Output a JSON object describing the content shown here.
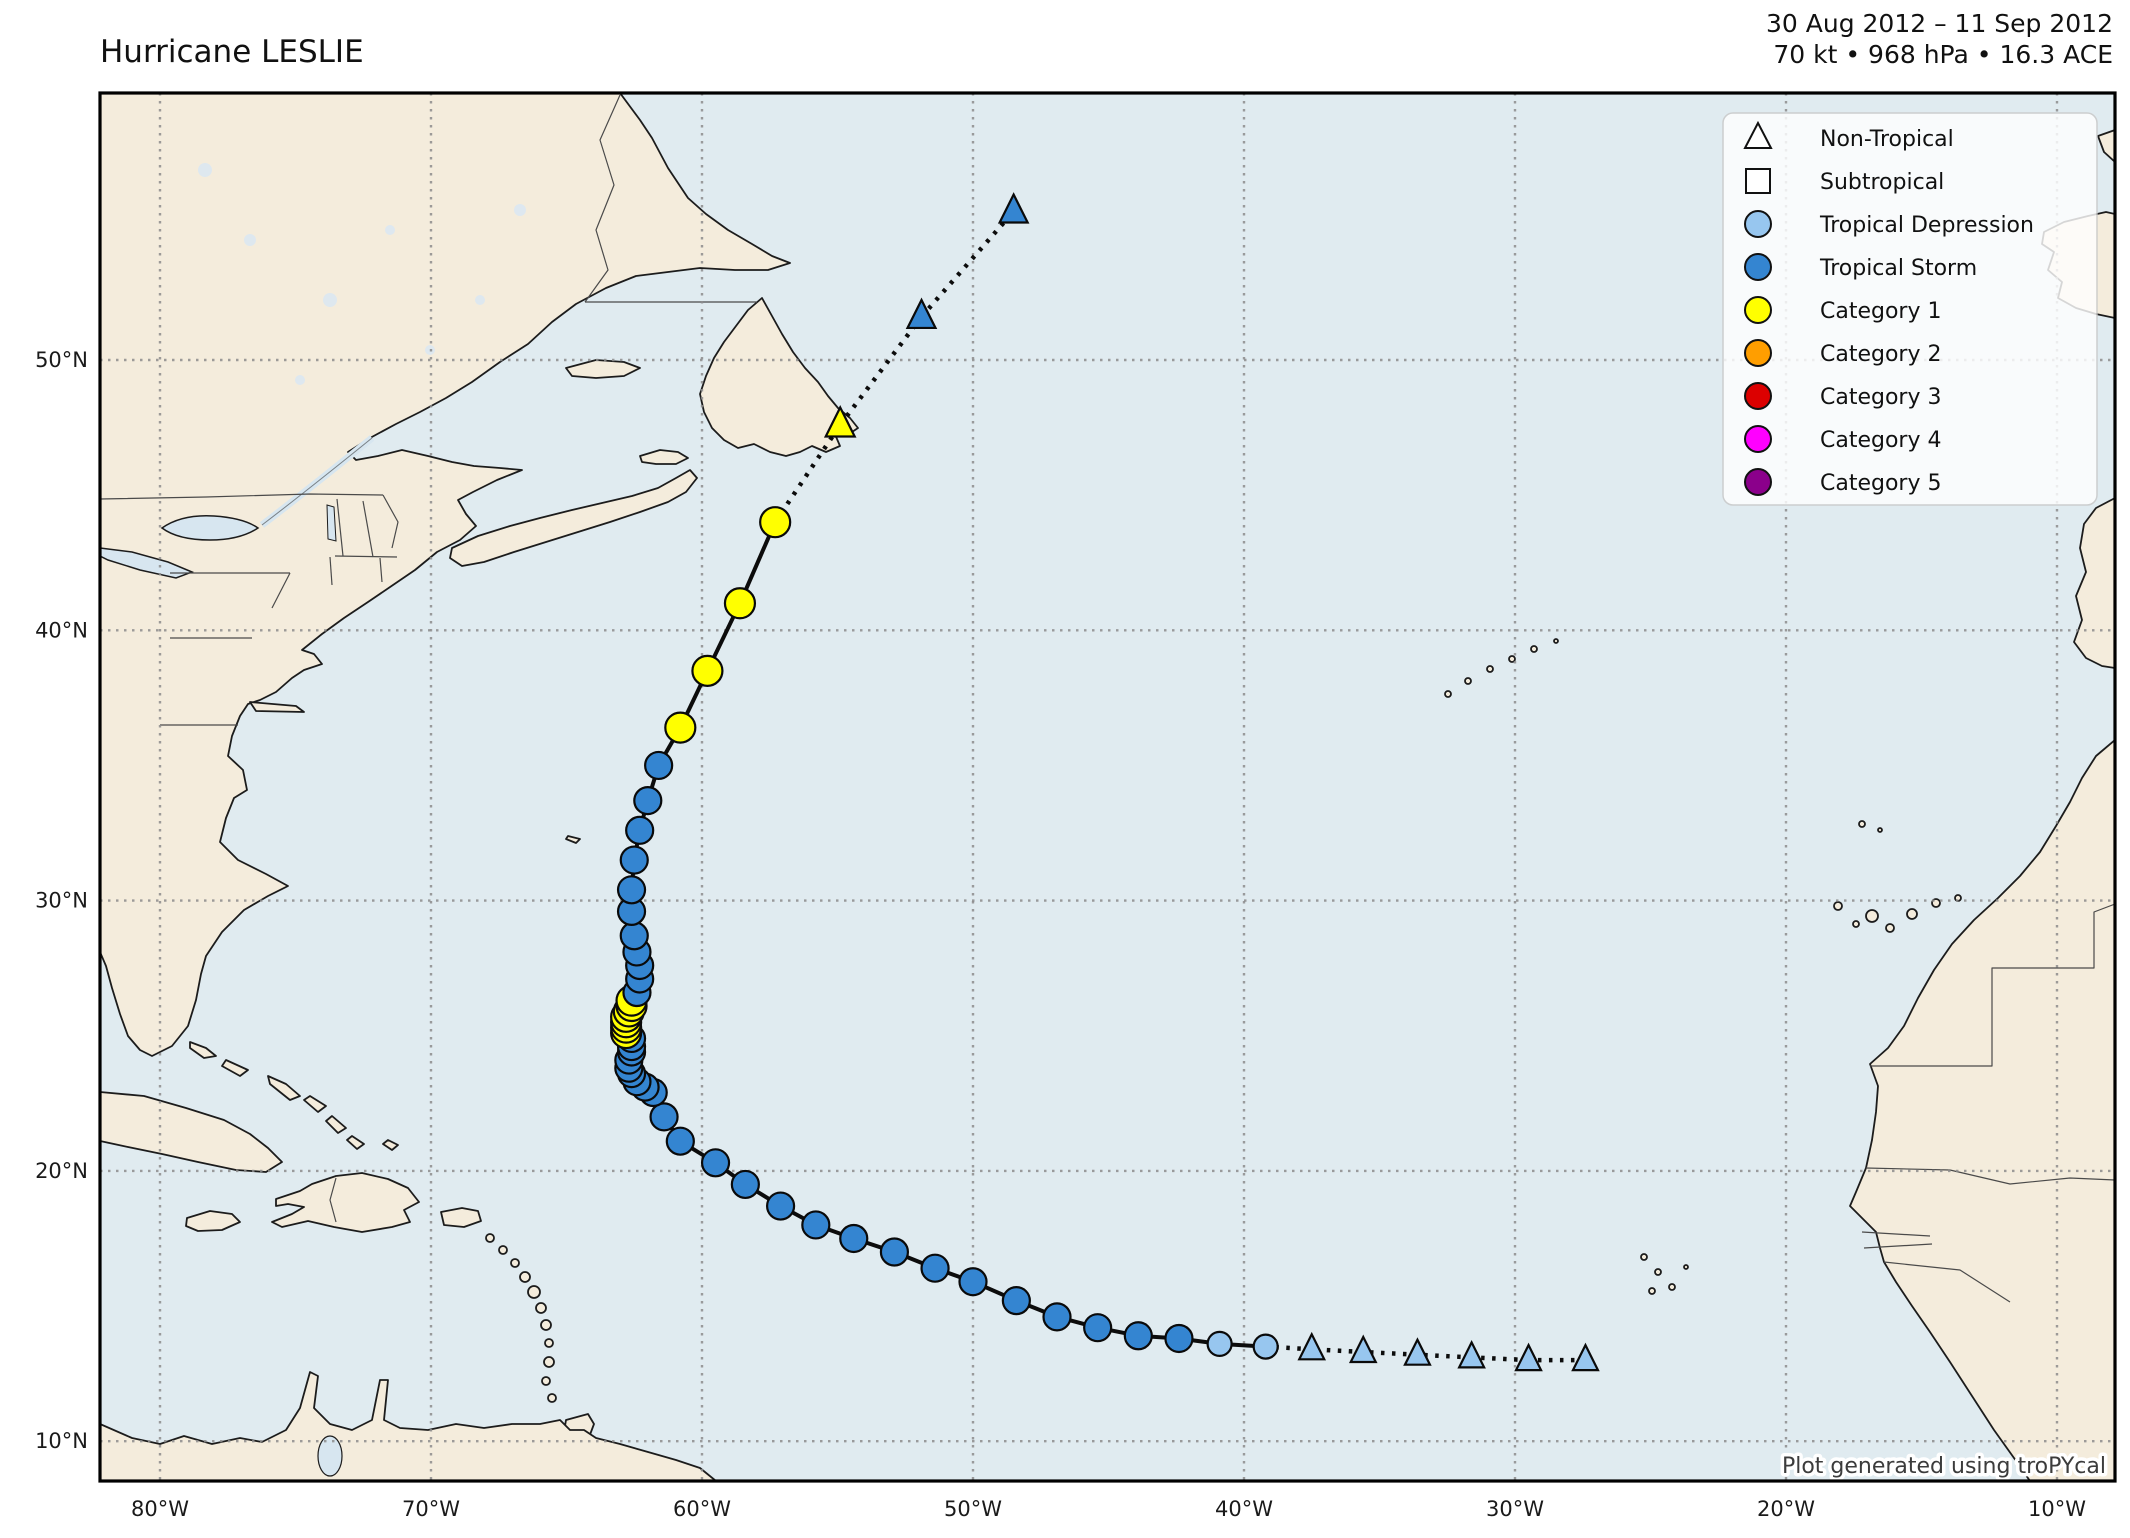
{
  "header": {
    "title": "Hurricane LESLIE",
    "date_range": "30 Aug 2012 – 11 Sep 2012",
    "stats": "70 kt • 968 hPa • 16.3 ACE"
  },
  "legend": {
    "items": [
      {
        "label": "Non-Tropical",
        "marker": "triangle",
        "fill": "#ffffff"
      },
      {
        "label": "Subtropical",
        "marker": "square",
        "fill": "#ffffff"
      },
      {
        "label": "Tropical Depression",
        "marker": "circle",
        "fill": "#97c6ef"
      },
      {
        "label": "Tropical Storm",
        "marker": "circle",
        "fill": "#3485d1"
      },
      {
        "label": "Category 1",
        "marker": "circle",
        "fill": "#ffff00"
      },
      {
        "label": "Category 2",
        "marker": "circle",
        "fill": "#ff9e00"
      },
      {
        "label": "Category 3",
        "marker": "circle",
        "fill": "#dc0000"
      },
      {
        "label": "Category 4",
        "marker": "circle",
        "fill": "#ff00ff"
      },
      {
        "label": "Category 5",
        "marker": "circle",
        "fill": "#8b008b"
      }
    ]
  },
  "axes": {
    "lon_ticks": [
      {
        "value": -80,
        "label": "80°W"
      },
      {
        "value": -70,
        "label": "70°W"
      },
      {
        "value": -60,
        "label": "60°W"
      },
      {
        "value": -50,
        "label": "50°W"
      },
      {
        "value": -40,
        "label": "40°W"
      },
      {
        "value": -30,
        "label": "30°W"
      },
      {
        "value": -20,
        "label": "20°W"
      },
      {
        "value": -10,
        "label": "10°W"
      }
    ],
    "lat_ticks": [
      {
        "value": 10,
        "label": "10°N"
      },
      {
        "value": 20,
        "label": "20°N"
      },
      {
        "value": 30,
        "label": "30°N"
      },
      {
        "value": 40,
        "label": "40°N"
      },
      {
        "value": 50,
        "label": "50°N"
      }
    ]
  },
  "attribution": "Plot generated using troPYcal",
  "colors": {
    "ocean": "#e0ebf0",
    "land": "#f4ecdc",
    "lake": "#d7e6f0",
    "td": "#97c6ef",
    "ts": "#3485d1",
    "c1": "#ffff00",
    "c2": "#ff9e00",
    "c3": "#dc0000",
    "c4": "#ff00ff",
    "c5": "#8b008b"
  },
  "chart_data": {
    "type": "geo_track",
    "storm_name": "Hurricane LESLIE",
    "date_range": "30 Aug 2012 – 11 Sep 2012",
    "peak_wind_kt": 70,
    "min_pressure_hpa": 968,
    "ace": 16.3,
    "extent": {
      "lon": [
        -82.2,
        -7.9
      ],
      "lat": [
        8.5,
        59.9
      ]
    },
    "points": [
      {
        "lon": -27.4,
        "lat": 13.0,
        "status": "td",
        "marker": "triangle"
      },
      {
        "lon": -29.5,
        "lat": 13.0,
        "status": "td",
        "marker": "triangle"
      },
      {
        "lon": -31.6,
        "lat": 13.1,
        "status": "td",
        "marker": "triangle"
      },
      {
        "lon": -33.6,
        "lat": 13.2,
        "status": "td",
        "marker": "triangle"
      },
      {
        "lon": -35.6,
        "lat": 13.3,
        "status": "td",
        "marker": "triangle"
      },
      {
        "lon": -37.5,
        "lat": 13.4,
        "status": "td",
        "marker": "triangle"
      },
      {
        "lon": -39.2,
        "lat": 13.5,
        "status": "td",
        "marker": "circle"
      },
      {
        "lon": -40.9,
        "lat": 13.6,
        "status": "td",
        "marker": "circle"
      },
      {
        "lon": -42.4,
        "lat": 13.8,
        "status": "ts",
        "marker": "circle"
      },
      {
        "lon": -43.9,
        "lat": 13.9,
        "status": "ts",
        "marker": "circle"
      },
      {
        "lon": -45.4,
        "lat": 14.2,
        "status": "ts",
        "marker": "circle"
      },
      {
        "lon": -46.9,
        "lat": 14.6,
        "status": "ts",
        "marker": "circle"
      },
      {
        "lon": -48.4,
        "lat": 15.2,
        "status": "ts",
        "marker": "circle"
      },
      {
        "lon": -50.0,
        "lat": 15.9,
        "status": "ts",
        "marker": "circle"
      },
      {
        "lon": -51.4,
        "lat": 16.4,
        "status": "ts",
        "marker": "circle"
      },
      {
        "lon": -52.9,
        "lat": 17.0,
        "status": "ts",
        "marker": "circle"
      },
      {
        "lon": -54.4,
        "lat": 17.5,
        "status": "ts",
        "marker": "circle"
      },
      {
        "lon": -55.8,
        "lat": 18.0,
        "status": "ts",
        "marker": "circle"
      },
      {
        "lon": -57.1,
        "lat": 18.7,
        "status": "ts",
        "marker": "circle"
      },
      {
        "lon": -58.4,
        "lat": 19.5,
        "status": "ts",
        "marker": "circle"
      },
      {
        "lon": -59.5,
        "lat": 20.3,
        "status": "ts",
        "marker": "circle"
      },
      {
        "lon": -60.8,
        "lat": 21.1,
        "status": "ts",
        "marker": "circle"
      },
      {
        "lon": -61.4,
        "lat": 22.0,
        "status": "ts",
        "marker": "circle"
      },
      {
        "lon": -61.8,
        "lat": 22.9,
        "status": "ts",
        "marker": "circle"
      },
      {
        "lon": -62.1,
        "lat": 23.1,
        "status": "ts",
        "marker": "circle"
      },
      {
        "lon": -62.4,
        "lat": 23.3,
        "status": "ts",
        "marker": "circle"
      },
      {
        "lon": -62.6,
        "lat": 23.6,
        "status": "ts",
        "marker": "circle"
      },
      {
        "lon": -62.7,
        "lat": 23.8,
        "status": "ts",
        "marker": "circle"
      },
      {
        "lon": -62.7,
        "lat": 24.1,
        "status": "ts",
        "marker": "circle"
      },
      {
        "lon": -62.6,
        "lat": 24.4,
        "status": "ts",
        "marker": "circle"
      },
      {
        "lon": -62.6,
        "lat": 24.6,
        "status": "ts",
        "marker": "circle"
      },
      {
        "lon": -62.6,
        "lat": 24.9,
        "status": "ts",
        "marker": "circle"
      },
      {
        "lon": -62.8,
        "lat": 25.1,
        "status": "c1",
        "marker": "circle"
      },
      {
        "lon": -62.8,
        "lat": 25.3,
        "status": "c1",
        "marker": "circle"
      },
      {
        "lon": -62.8,
        "lat": 25.5,
        "status": "c1",
        "marker": "circle"
      },
      {
        "lon": -62.8,
        "lat": 25.7,
        "status": "c1",
        "marker": "circle"
      },
      {
        "lon": -62.7,
        "lat": 25.9,
        "status": "c1",
        "marker": "circle"
      },
      {
        "lon": -62.6,
        "lat": 26.1,
        "status": "c1",
        "marker": "circle"
      },
      {
        "lon": -62.6,
        "lat": 26.3,
        "status": "c1",
        "marker": "circle"
      },
      {
        "lon": -62.4,
        "lat": 26.6,
        "status": "ts",
        "marker": "circle"
      },
      {
        "lon": -62.3,
        "lat": 27.1,
        "status": "ts",
        "marker": "circle"
      },
      {
        "lon": -62.3,
        "lat": 27.6,
        "status": "ts",
        "marker": "circle"
      },
      {
        "lon": -62.4,
        "lat": 28.1,
        "status": "ts",
        "marker": "circle"
      },
      {
        "lon": -62.5,
        "lat": 28.7,
        "status": "ts",
        "marker": "circle"
      },
      {
        "lon": -62.6,
        "lat": 29.6,
        "status": "ts",
        "marker": "circle"
      },
      {
        "lon": -62.6,
        "lat": 30.4,
        "status": "ts",
        "marker": "circle"
      },
      {
        "lon": -62.5,
        "lat": 31.5,
        "status": "ts",
        "marker": "circle"
      },
      {
        "lon": -62.3,
        "lat": 32.6,
        "status": "ts",
        "marker": "circle"
      },
      {
        "lon": -62.0,
        "lat": 33.7,
        "status": "ts",
        "marker": "circle"
      },
      {
        "lon": -61.6,
        "lat": 35.0,
        "status": "ts",
        "marker": "circle"
      },
      {
        "lon": -60.8,
        "lat": 36.4,
        "status": "c1",
        "marker": "circle"
      },
      {
        "lon": -59.8,
        "lat": 38.5,
        "status": "c1",
        "marker": "circle"
      },
      {
        "lon": -58.6,
        "lat": 41.0,
        "status": "c1",
        "marker": "circle"
      },
      {
        "lon": -57.3,
        "lat": 44.0,
        "status": "c1",
        "marker": "circle"
      },
      {
        "lon": -54.9,
        "lat": 47.6,
        "status": "c1",
        "marker": "triangle"
      },
      {
        "lon": -51.9,
        "lat": 51.6,
        "status": "ts",
        "marker": "triangle"
      },
      {
        "lon": -48.5,
        "lat": 55.5,
        "status": "ts",
        "marker": "triangle"
      }
    ]
  }
}
